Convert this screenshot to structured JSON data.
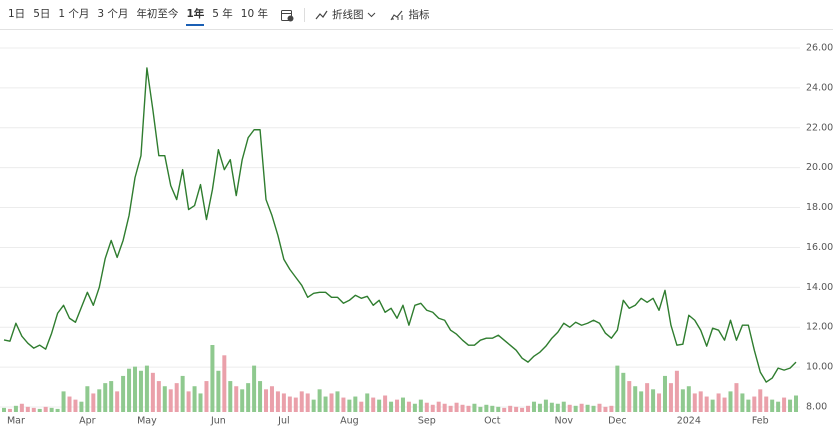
{
  "toolbar": {
    "ranges": [
      "1日",
      "5日",
      "1 个月",
      "3 个月",
      "年初至今",
      "1年",
      "5 年",
      "10 年"
    ],
    "selected_range": 5,
    "chart_style": "折线图",
    "indicators": "指标"
  },
  "chart_data": {
    "type": "line",
    "color": "#2f7d2f",
    "values": [
      11.36,
      11.3,
      12.2,
      11.55,
      11.2,
      10.95,
      11.1,
      10.9,
      11.7,
      12.7,
      13.1,
      12.45,
      12.25,
      13.0,
      13.75,
      13.1,
      14.0,
      15.45,
      16.35,
      15.5,
      16.35,
      17.6,
      19.5,
      20.6,
      25.0,
      22.9,
      20.6,
      20.6,
      19.1,
      18.4,
      19.9,
      17.9,
      18.1,
      19.15,
      17.4,
      18.9,
      20.9,
      19.9,
      20.4,
      18.6,
      20.4,
      21.5,
      21.9,
      21.9,
      18.4,
      17.6,
      16.6,
      15.4,
      14.9,
      14.5,
      14.1,
      13.5,
      13.7,
      13.75,
      13.75,
      13.5,
      13.5,
      13.2,
      13.35,
      13.6,
      13.45,
      13.55,
      13.1,
      13.35,
      12.75,
      12.95,
      12.45,
      13.1,
      12.1,
      13.1,
      13.2,
      12.85,
      12.75,
      12.45,
      12.35,
      11.85,
      11.65,
      11.35,
      11.1,
      11.1,
      11.35,
      11.45,
      11.45,
      11.6,
      11.35,
      11.1,
      10.85,
      10.45,
      10.25,
      10.55,
      10.75,
      11.05,
      11.45,
      11.75,
      12.2,
      12.0,
      12.25,
      12.1,
      12.2,
      12.35,
      12.2,
      11.7,
      11.45,
      11.85,
      13.35,
      12.95,
      13.1,
      13.45,
      13.25,
      13.45,
      12.85,
      13.85,
      12.1,
      11.1,
      11.15,
      12.6,
      12.35,
      11.85,
      11.05,
      11.95,
      11.85,
      11.35,
      12.35,
      11.35,
      12.1,
      12.1,
      10.85,
      9.75,
      9.25,
      9.45,
      9.95,
      9.85,
      9.95,
      10.25
    ],
    "volume": {
      "up_color": "#8fc98f",
      "down_color": "#eaa0aa",
      "values": [
        4,
        3,
        6,
        8,
        5,
        4,
        3,
        5,
        4,
        3,
        20,
        15,
        12,
        10,
        25,
        18,
        22,
        28,
        30,
        20,
        35,
        42,
        44,
        40,
        45,
        38,
        30,
        25,
        22,
        28,
        35,
        20,
        25,
        18,
        30,
        65,
        40,
        55,
        30,
        25,
        22,
        28,
        45,
        30,
        22,
        25,
        20,
        18,
        15,
        14,
        20,
        18,
        12,
        22,
        15,
        18,
        20,
        14,
        12,
        15,
        10,
        18,
        14,
        12,
        16,
        10,
        12,
        14,
        10,
        8,
        12,
        9,
        7,
        10,
        8,
        6,
        9,
        7,
        6,
        8,
        5,
        7,
        6,
        5,
        4,
        6,
        5,
        4,
        6,
        10,
        8,
        12,
        9,
        8,
        10,
        7,
        6,
        8,
        7,
        6,
        8,
        5,
        6,
        45,
        38,
        30,
        25,
        20,
        28,
        22,
        18,
        35,
        28,
        40,
        22,
        25,
        18,
        20,
        15,
        12,
        18,
        14,
        20,
        28,
        18,
        12,
        15,
        22,
        15,
        12,
        10,
        14,
        12,
        16
      ]
    },
    "xlim": [
      0,
      133
    ],
    "xticks": [
      {
        "value": 2,
        "label": "Mar"
      },
      {
        "value": 14,
        "label": "Apr"
      },
      {
        "value": 24,
        "label": "May"
      },
      {
        "value": 36,
        "label": "Jun"
      },
      {
        "value": 47,
        "label": "Jul"
      },
      {
        "value": 58,
        "label": "Aug"
      },
      {
        "value": 71,
        "label": "Sep"
      },
      {
        "value": 82,
        "label": "Oct"
      },
      {
        "value": 94,
        "label": "Nov"
      },
      {
        "value": 103,
        "label": "Dec"
      },
      {
        "value": 115,
        "label": "2024"
      },
      {
        "value": 127,
        "label": "Feb"
      }
    ],
    "ylim": [
      7.7,
      26.65
    ],
    "yticks": [
      {
        "value": 8,
        "label": "8.00"
      },
      {
        "value": 10,
        "label": "10.00"
      },
      {
        "value": 12,
        "label": "12.00"
      },
      {
        "value": 14,
        "label": "14.00"
      },
      {
        "value": 16,
        "label": "16.00"
      },
      {
        "value": 18,
        "label": "18.00"
      },
      {
        "value": 20,
        "label": "20.00"
      },
      {
        "value": 22,
        "label": "22.00"
      },
      {
        "value": 24,
        "label": "24.00"
      },
      {
        "value": 26,
        "label": "26.00"
      }
    ],
    "grid": true
  }
}
